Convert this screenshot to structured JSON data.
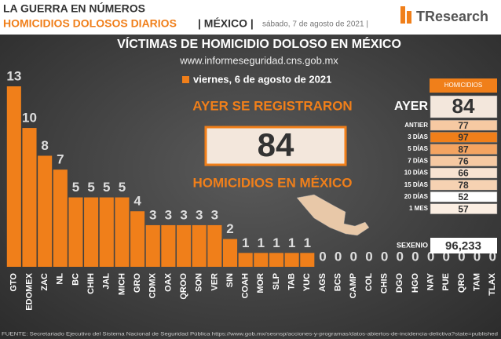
{
  "header": {
    "title": "LA GUERRA EN NÚMEROS",
    "subtitle": "HOMICIDIOS DOLOSOS DIARIOS",
    "country": "| MÉXICO |",
    "date": "sábado, 7 de agosto de 2021 |",
    "logo": "TResearch"
  },
  "chart_data": {
    "type": "bar",
    "title": "VÍCTIMAS DE HOMICIDIO DOLOSO EN MÉXICO",
    "subtitle": "www.informeseguridad.cns.gob.mx",
    "legend": "viernes, 6 de agosto de 2021",
    "color": "#f07f1a",
    "categories": [
      "GTO",
      "EDOMEX",
      "ZAC",
      "NL",
      "BC",
      "CHIH",
      "JAL",
      "MICH",
      "GRO",
      "CDMX",
      "OAX",
      "QROO",
      "SON",
      "VER",
      "SIN",
      "COAH",
      "MOR",
      "SLP",
      "TAB",
      "YUC",
      "AGS",
      "BCS",
      "CAMP",
      "COL",
      "CHIS",
      "DGO",
      "HGO",
      "NAY",
      "PUE",
      "QRO",
      "TAM",
      "TLAX"
    ],
    "values": [
      13,
      10,
      8,
      7,
      5,
      5,
      5,
      5,
      4,
      3,
      3,
      3,
      3,
      3,
      2,
      1,
      1,
      1,
      1,
      1,
      0,
      0,
      0,
      0,
      0,
      0,
      0,
      0,
      0,
      0,
      0,
      0
    ],
    "ylim": [
      0,
      13
    ]
  },
  "callout": {
    "top": "AYER SE REGISTRARON",
    "value": 84,
    "bottom": "HOMICIDIOS EN MÉXICO"
  },
  "summary": {
    "header": "HOMICIDIOS",
    "rows": [
      [
        "AYER",
        84
      ],
      [
        "ANTIER",
        77
      ],
      [
        "3 DÍAS",
        97
      ],
      [
        "5 DÍAS",
        87
      ],
      [
        "7 DÍAS",
        76
      ],
      [
        "10 DÍAS",
        66
      ],
      [
        "15 DÍAS",
        78
      ],
      [
        "20 DÍAS",
        52
      ],
      [
        "1 MES",
        57
      ]
    ],
    "total": [
      "SEXENIO",
      "96,233"
    ]
  },
  "source": "FUENTE: Secretariado Ejecutivo del Sistema Nacional de Seguridad Pública https://www.gob.mx/sesnsp/acciones-y-programas/datos-abiertos-de-incidencia-delictiva?state=published"
}
